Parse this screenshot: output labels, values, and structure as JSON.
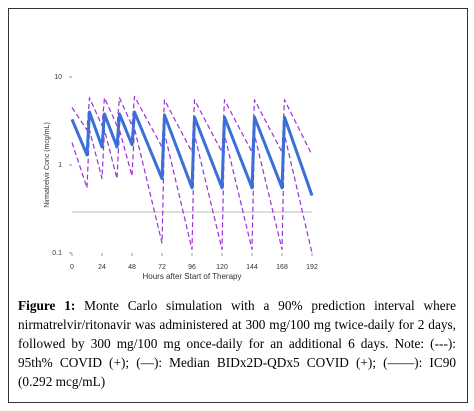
{
  "chart_data": {
    "type": "line",
    "xlabel": "Hours after Start of Therapy",
    "ylabel": "Nirmatrelvir Conc (mcg/mL)",
    "log_y": true,
    "xlim": [
      0,
      192
    ],
    "xticks": [
      0,
      24,
      48,
      72,
      96,
      120,
      144,
      168,
      192
    ],
    "ylim": [
      0.1,
      10
    ],
    "yticks": [
      0.1,
      1,
      10
    ],
    "x": [
      0,
      12,
      14,
      24,
      26,
      36,
      38,
      48,
      50,
      72,
      74,
      96,
      98,
      120,
      122,
      144,
      146,
      168,
      170,
      192
    ],
    "series": [
      {
        "color": "#9b30d9",
        "dash": true,
        "values": [
          4.5,
          2.5,
          5.8,
          2.8,
          5.8,
          2.8,
          5.8,
          2.8,
          6.0,
          1.6,
          5.5,
          1.4,
          5.5,
          1.4,
          5.5,
          1.4,
          5.5,
          1.4,
          5.5,
          1.3
        ]
      },
      {
        "color": "#9b30d9",
        "dash": true,
        "values": [
          1.8,
          0.55,
          2.5,
          0.7,
          2.5,
          0.7,
          2.5,
          0.75,
          2.6,
          0.13,
          2.3,
          0.11,
          2.2,
          0.11,
          2.2,
          0.11,
          2.2,
          0.11,
          2.2,
          0.1
        ]
      },
      {
        "color": "#3a6fd8",
        "dash": false,
        "values": [
          3.3,
          1.3,
          4.0,
          1.6,
          3.8,
          1.6,
          3.8,
          1.7,
          4.0,
          0.7,
          3.7,
          0.55,
          3.5,
          0.55,
          3.5,
          0.55,
          3.5,
          0.55,
          3.5,
          0.45
        ]
      }
    ],
    "hlines": [
      {
        "value": 0.292,
        "color": "#bbbbbb"
      }
    ]
  },
  "caption": {
    "label": "Figure 1:",
    "text": "Monte Carlo simulation with a 90% prediction interval where nirmatrelvir/ritonavir was administered at 300 mg/100 mg twice-daily for 2 days, followed by 300 mg/100 mg once-daily for an additional 6 days. Note: (---): 95th% COVID (+); (—): Median BIDx2D-QDx5 COVID (+); (——): IC90 (0.292 mcg/mL)"
  }
}
